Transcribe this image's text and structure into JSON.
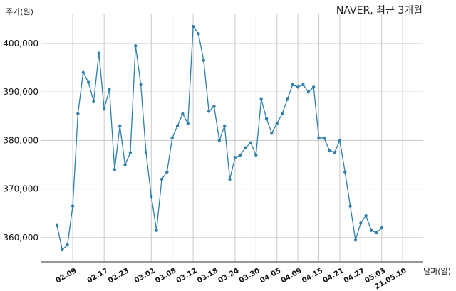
{
  "chart_data": {
    "type": "line",
    "title": "NAVER, 최근 3개월",
    "ylabel": "주가(원)",
    "xlabel": "날짜(일)",
    "ylim": [
      355000,
      406000
    ],
    "yticks": [
      360000,
      370000,
      380000,
      390000,
      400000
    ],
    "ytick_labels": [
      "360,000",
      "370,000",
      "380,000",
      "390,000",
      "400,000"
    ],
    "xtick_labels": [
      "02.09",
      "02.17",
      "02.23",
      "03.02",
      "03.08",
      "03.12",
      "03.18",
      "03.24",
      "03.30",
      "04.05",
      "04.09",
      "04.15",
      "04.21",
      "04.27",
      "05.03",
      "21.05.10"
    ],
    "xtick_index": [
      3,
      9,
      13,
      18,
      22,
      26,
      30,
      34,
      38,
      42,
      46,
      50,
      54,
      58,
      62,
      66
    ],
    "grid": true,
    "line_color": "#2f7fad",
    "series": [
      {
        "values": [
          362500,
          357500,
          358500,
          366500,
          385500,
          394000,
          392000,
          388000,
          398000,
          386500,
          390500,
          374000,
          383000,
          375000,
          377500,
          399500,
          391500,
          377500,
          368500,
          361500,
          372000,
          373500,
          380500,
          383000,
          385500,
          383500,
          403500,
          402000,
          396500,
          386000,
          387000,
          380000,
          383000,
          372000,
          376500,
          377000,
          378500,
          379500,
          377000,
          388500,
          384500,
          381500,
          383500,
          385500,
          388500,
          391500,
          391000,
          391500,
          390000,
          391000,
          380500,
          380500,
          378000,
          377500,
          380000,
          373500,
          366500,
          359500,
          363000,
          364500,
          361500,
          361000,
          362000
        ]
      }
    ]
  }
}
